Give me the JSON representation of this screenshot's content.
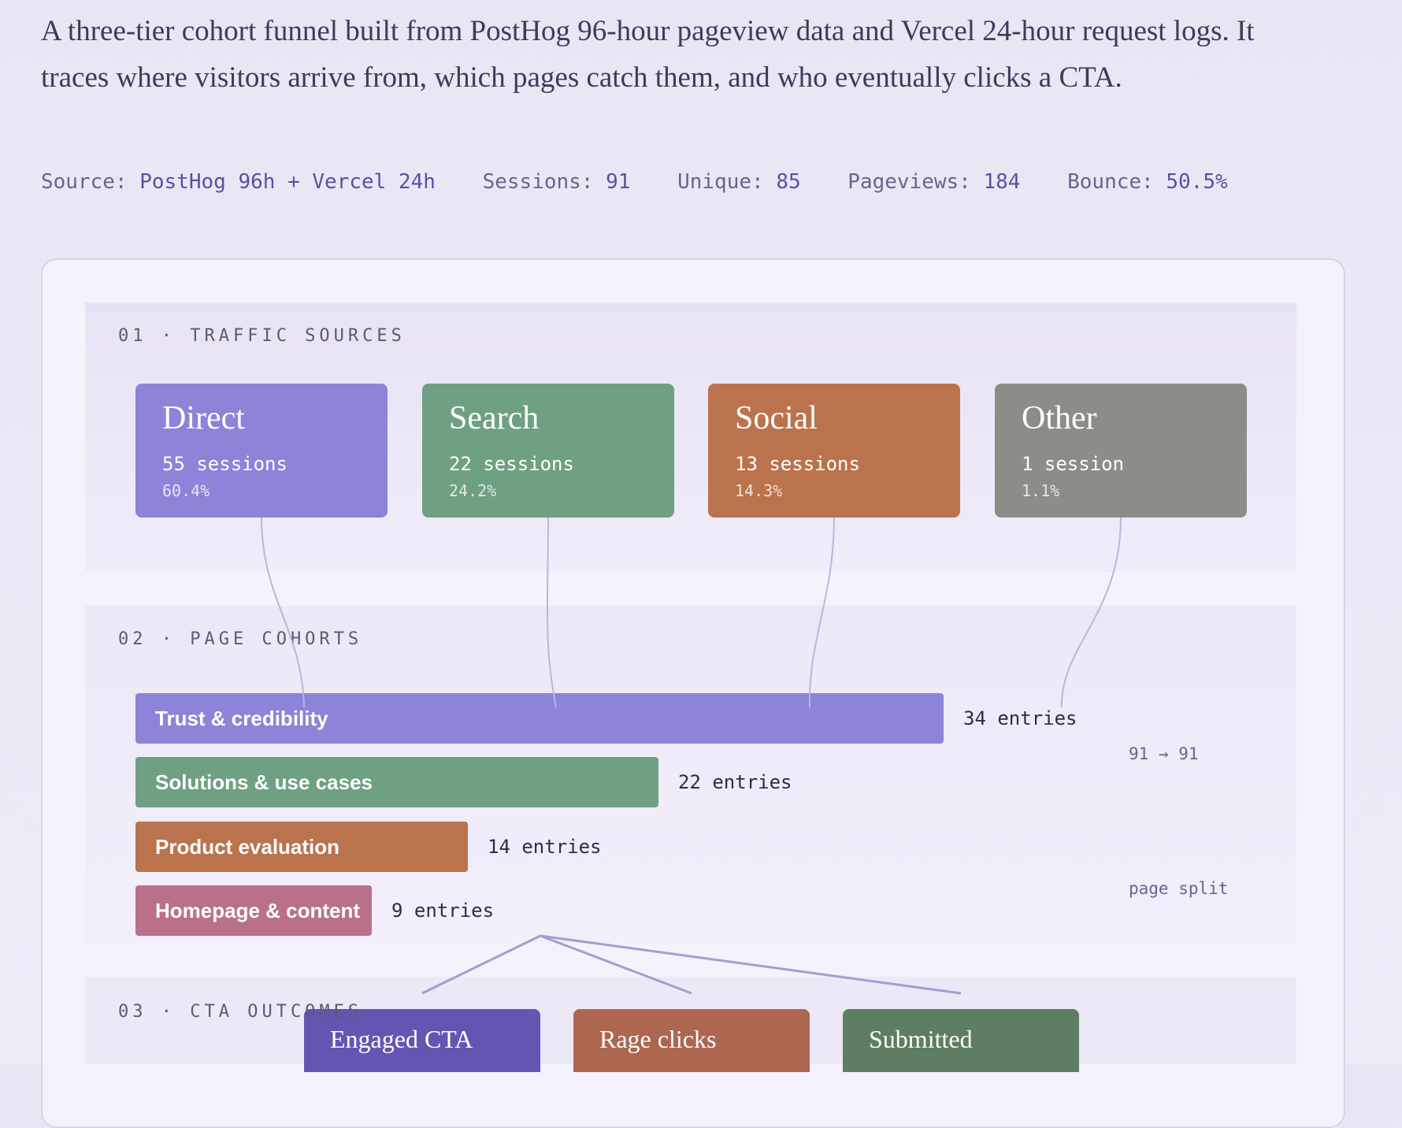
{
  "intro": "A three-tier cohort funnel built from PostHog 96-hour pageview data and Vercel 24-hour request logs. It traces where visitors arrive from, which pages catch them, and who eventually clicks a CTA.",
  "meta": {
    "source_label": "Source:",
    "source_value": "PostHog 96h + Vercel 24h",
    "sessions_label": "Sessions:",
    "sessions_value": "91",
    "unique_label": "Unique:",
    "unique_value": "85",
    "pageviews_label": "Pageviews:",
    "pageviews_value": "184",
    "bounce_label": "Bounce:",
    "bounce_value": "50.5%"
  },
  "tiers": {
    "t1": "01 · TRAFFIC SOURCES",
    "t2": "02 · PAGE COHORTS",
    "t3": "03 · CTA OUTCOMES"
  },
  "sources": [
    {
      "name": "Direct",
      "sessions": "55 sessions",
      "pct": "60.4%",
      "color": "#8b84d8"
    },
    {
      "name": "Search",
      "sessions": "22 sessions",
      "pct": "24.2%",
      "color": "#6ea081"
    },
    {
      "name": "Social",
      "sessions": "13 sessions",
      "pct": "14.3%",
      "color": "#bb734d"
    },
    {
      "name": "Other",
      "sessions": "1 session",
      "pct": "1.1%",
      "color": "#8d8d88"
    }
  ],
  "cohorts": [
    {
      "label": "Trust & credibility",
      "entries": 34,
      "count": "34 entries",
      "color": "#8b84d8"
    },
    {
      "label": "Solutions & use cases",
      "entries": 22,
      "count": "22 entries",
      "color": "#6ea081"
    },
    {
      "label": "Product evaluation",
      "entries": 14,
      "count": "14 entries",
      "color": "#bb734d"
    },
    {
      "label": "Homepage & content",
      "entries": 9,
      "count": "9 entries",
      "color": "#bb7089"
    }
  ],
  "notes": {
    "flow": "91 → 91",
    "split": "page split"
  },
  "outcomes": [
    {
      "label": "Engaged CTA",
      "color": "#6555b2"
    },
    {
      "label": "Rage clicks",
      "color": "#ad6650"
    },
    {
      "label": "Submitted",
      "color": "#5e7d62"
    }
  ]
}
